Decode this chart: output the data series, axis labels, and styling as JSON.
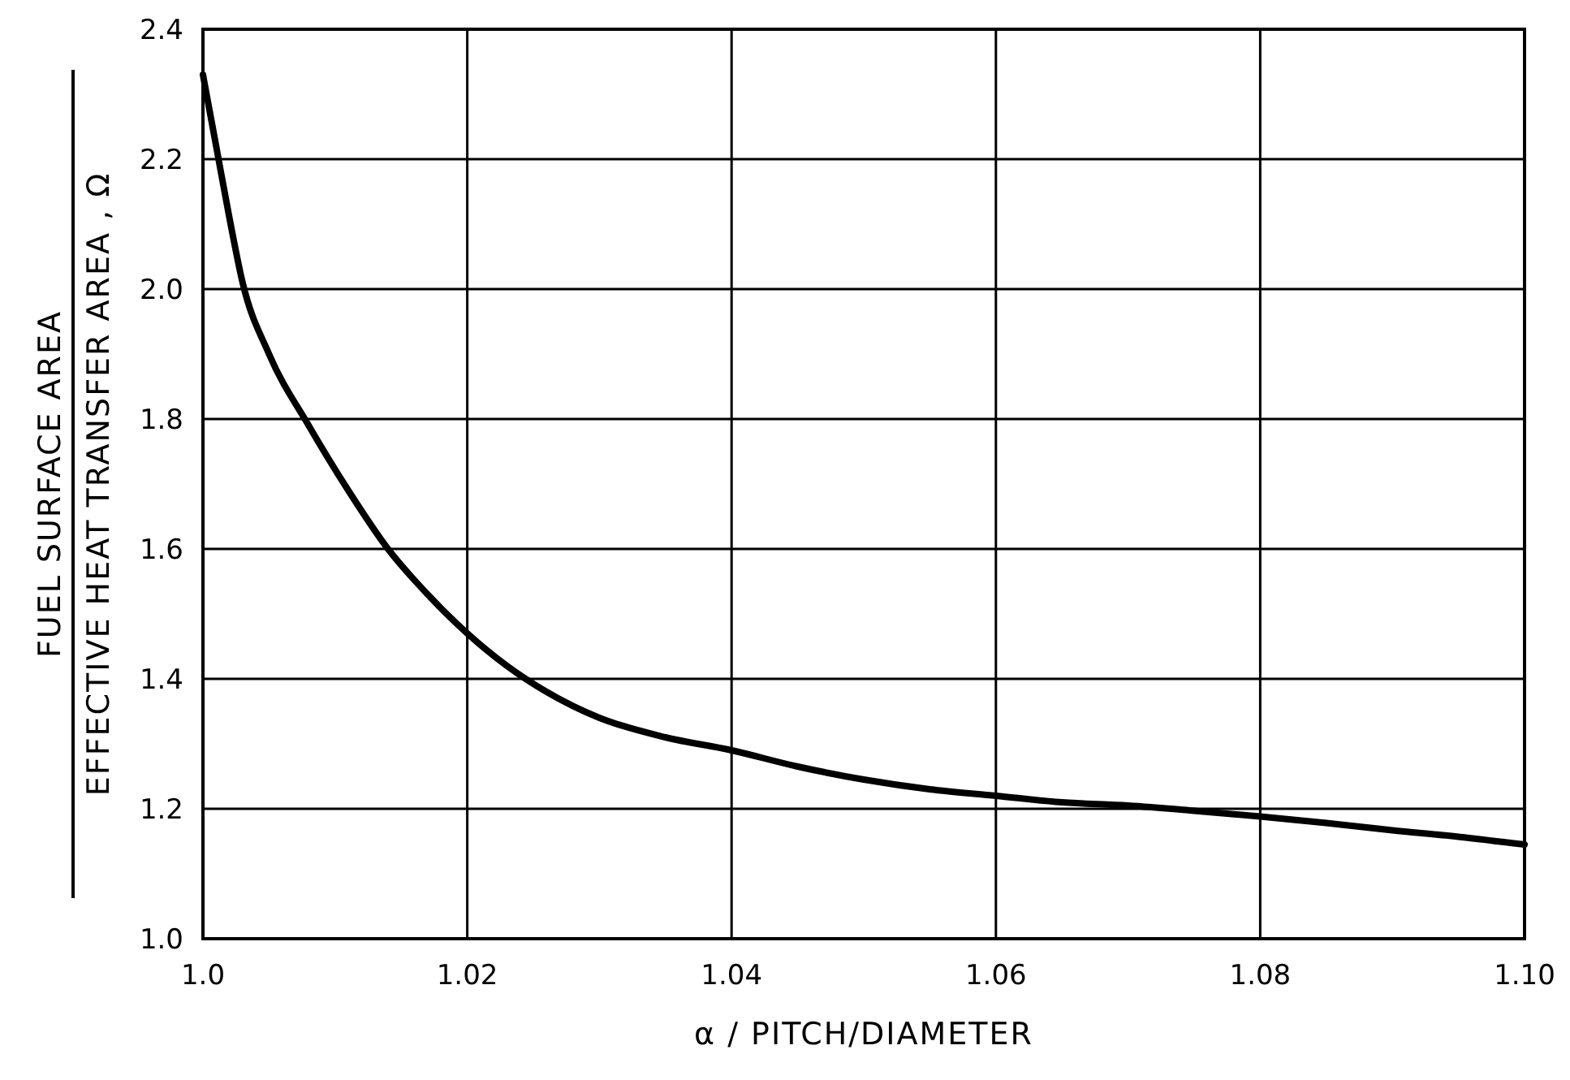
{
  "chart_data": {
    "type": "line",
    "xlabel": "α / PITCH/DIAMETER",
    "ylabel": "FUEL SURFACE AREA\nEFFECTIVE HEAT TRANSFER AREA , Ω",
    "xlim": [
      1.0,
      1.1
    ],
    "ylim": [
      1.0,
      2.4
    ],
    "xticks": [
      {
        "value": 1.0,
        "label": "1.0"
      },
      1.02,
      1.04,
      1.06,
      1.08,
      {
        "value": 1.1,
        "label": "1.10"
      }
    ],
    "yticks": [
      {
        "value": 1.0,
        "label": "1.0"
      },
      1.2,
      1.4,
      1.6,
      1.8,
      {
        "value": 2.0,
        "label": "2.0"
      },
      2.2,
      2.4
    ],
    "grid": true,
    "marker": "none",
    "line_style": "solid",
    "series": [
      {
        "color": "#000000",
        "x": [
          1.0,
          1.001,
          1.002,
          1.003,
          1.005,
          1.008,
          1.011,
          1.014,
          1.017,
          1.02,
          1.023,
          1.026,
          1.03,
          1.035,
          1.04,
          1.045,
          1.05,
          1.055,
          1.06,
          1.065,
          1.07,
          1.075,
          1.08,
          1.085,
          1.09,
          1.095,
          1.1
        ],
        "values": [
          2.33,
          2.22,
          2.11,
          2.01,
          1.9,
          1.79,
          1.69,
          1.6,
          1.53,
          1.47,
          1.42,
          1.38,
          1.34,
          1.31,
          1.29,
          1.265,
          1.245,
          1.23,
          1.22,
          1.21,
          1.205,
          1.197,
          1.188,
          1.178,
          1.167,
          1.157,
          1.145
        ]
      }
    ]
  }
}
